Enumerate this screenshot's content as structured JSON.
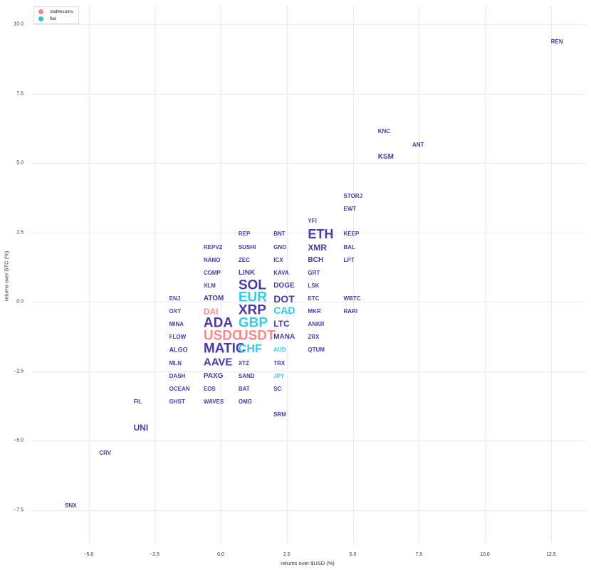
{
  "chart_data": {
    "type": "scatter",
    "title": "",
    "xlabel": "returns over $USD (%)",
    "ylabel": "returns over BTC (%)",
    "xlim": [
      -7.2,
      13.8
    ],
    "ylim": [
      -8.8,
      10.2
    ],
    "grid": true,
    "legend_position": "upper left",
    "x_ticks": [
      "−5.0",
      "−2.5",
      "0.0",
      "2.5",
      "5.0",
      "7.5",
      "10.0",
      "12.5"
    ],
    "y_ticks": [
      "10.0",
      "7.5",
      "5.0",
      "2.5",
      "0.0",
      "−2.5",
      "−5.0",
      "−7.5"
    ],
    "legend": [
      {
        "label": "stablecoins",
        "color": "#f7878a"
      },
      {
        "label": "fiat",
        "color": "#1ec8ee"
      }
    ],
    "colors": {
      "crypto": "#4a3aa7",
      "stablecoins": "#f7878a",
      "fiat": "#2ecbea"
    },
    "points": [
      {
        "label": "REN",
        "x": 12.5,
        "y": 9.35,
        "group": "crypto",
        "size": 8
      },
      {
        "label": "KNC",
        "x": 5.95,
        "y": 6.13,
        "group": "crypto",
        "size": 8
      },
      {
        "label": "ANT",
        "x": 7.25,
        "y": 5.64,
        "group": "crypto",
        "size": 8
      },
      {
        "label": "KSM",
        "x": 5.95,
        "y": 5.2,
        "group": "crypto",
        "size": 10
      },
      {
        "label": "STORJ",
        "x": 4.65,
        "y": 3.8,
        "group": "crypto",
        "size": 8
      },
      {
        "label": "EWT",
        "x": 4.65,
        "y": 3.33,
        "group": "crypto",
        "size": 8
      },
      {
        "label": "YFI",
        "x": 3.3,
        "y": 2.9,
        "group": "crypto",
        "size": 8
      },
      {
        "label": "ETH",
        "x": 3.3,
        "y": 2.44,
        "group": "crypto",
        "size": 18
      },
      {
        "label": "KEEP",
        "x": 4.65,
        "y": 2.44,
        "group": "crypto",
        "size": 8
      },
      {
        "label": "REP",
        "x": 0.67,
        "y": 2.44,
        "group": "crypto",
        "size": 8
      },
      {
        "label": "BNT",
        "x": 2.0,
        "y": 2.44,
        "group": "crypto",
        "size": 8
      },
      {
        "label": "REPV2",
        "x": -0.65,
        "y": 1.95,
        "group": "crypto",
        "size": 8
      },
      {
        "label": "SUSHI",
        "x": 0.67,
        "y": 1.95,
        "group": "crypto",
        "size": 8
      },
      {
        "label": "GNO",
        "x": 2.0,
        "y": 1.95,
        "group": "crypto",
        "size": 8
      },
      {
        "label": "XMR",
        "x": 3.3,
        "y": 1.95,
        "group": "crypto",
        "size": 12
      },
      {
        "label": "BAL",
        "x": 4.65,
        "y": 1.95,
        "group": "crypto",
        "size": 8
      },
      {
        "label": "NANO",
        "x": -0.65,
        "y": 1.49,
        "group": "crypto",
        "size": 8
      },
      {
        "label": "ZEC",
        "x": 0.67,
        "y": 1.49,
        "group": "crypto",
        "size": 8
      },
      {
        "label": "ICX",
        "x": 2.0,
        "y": 1.49,
        "group": "crypto",
        "size": 8
      },
      {
        "label": "BCH",
        "x": 3.3,
        "y": 1.49,
        "group": "crypto",
        "size": 10
      },
      {
        "label": "LPT",
        "x": 4.65,
        "y": 1.49,
        "group": "crypto",
        "size": 8
      },
      {
        "label": "COMP",
        "x": -0.65,
        "y": 1.03,
        "group": "crypto",
        "size": 8
      },
      {
        "label": "LINK",
        "x": 0.67,
        "y": 1.03,
        "group": "crypto",
        "size": 10
      },
      {
        "label": "KAVA",
        "x": 2.0,
        "y": 1.03,
        "group": "crypto",
        "size": 8
      },
      {
        "label": "GRT",
        "x": 3.3,
        "y": 1.03,
        "group": "crypto",
        "size": 8
      },
      {
        "label": "XLM",
        "x": -0.65,
        "y": 0.56,
        "group": "crypto",
        "size": 8
      },
      {
        "label": "SOL",
        "x": 0.67,
        "y": 0.6,
        "group": "crypto",
        "size": 19
      },
      {
        "label": "DOGE",
        "x": 2.0,
        "y": 0.56,
        "group": "crypto",
        "size": 10
      },
      {
        "label": "LSK",
        "x": 3.3,
        "y": 0.56,
        "group": "crypto",
        "size": 8
      },
      {
        "label": "ENJ",
        "x": -1.95,
        "y": 0.1,
        "group": "crypto",
        "size": 8
      },
      {
        "label": "ATOM",
        "x": -0.65,
        "y": 0.1,
        "group": "crypto",
        "size": 10
      },
      {
        "label": "EUR",
        "x": 0.67,
        "y": 0.15,
        "group": "fiat",
        "size": 19
      },
      {
        "label": "DOT",
        "x": 2.0,
        "y": 0.1,
        "group": "crypto",
        "size": 14
      },
      {
        "label": "ETC",
        "x": 3.3,
        "y": 0.1,
        "group": "crypto",
        "size": 8
      },
      {
        "label": "WBTC",
        "x": 4.65,
        "y": 0.1,
        "group": "crypto",
        "size": 8
      },
      {
        "label": "OXT",
        "x": -1.95,
        "y": -0.36,
        "group": "crypto",
        "size": 8
      },
      {
        "label": "DAI",
        "x": -0.65,
        "y": -0.36,
        "group": "stablecoins",
        "size": 12
      },
      {
        "label": "XRP",
        "x": 0.67,
        "y": -0.3,
        "group": "crypto",
        "size": 19
      },
      {
        "label": "CAD",
        "x": 2.0,
        "y": -0.32,
        "group": "fiat",
        "size": 14
      },
      {
        "label": "MKR",
        "x": 3.3,
        "y": -0.36,
        "group": "crypto",
        "size": 8
      },
      {
        "label": "RARI",
        "x": 4.65,
        "y": -0.36,
        "group": "crypto",
        "size": 8
      },
      {
        "label": "MINA",
        "x": -1.95,
        "y": -0.82,
        "group": "crypto",
        "size": 8
      },
      {
        "label": "ADA",
        "x": -0.65,
        "y": -0.76,
        "group": "crypto",
        "size": 19
      },
      {
        "label": "GBP",
        "x": 0.67,
        "y": -0.76,
        "group": "fiat",
        "size": 19
      },
      {
        "label": "LTC",
        "x": 2.0,
        "y": -0.8,
        "group": "crypto",
        "size": 12
      },
      {
        "label": "ANKR",
        "x": 3.3,
        "y": -0.82,
        "group": "crypto",
        "size": 8
      },
      {
        "label": "FLOW",
        "x": -1.95,
        "y": -1.28,
        "group": "crypto",
        "size": 8
      },
      {
        "label": "USDC",
        "x": -0.65,
        "y": -1.22,
        "group": "stablecoins",
        "size": 19
      },
      {
        "label": "USDT",
        "x": 0.67,
        "y": -1.22,
        "group": "stablecoins",
        "size": 19
      },
      {
        "label": "MANA",
        "x": 2.0,
        "y": -1.28,
        "group": "crypto",
        "size": 10
      },
      {
        "label": "ZRX",
        "x": 3.3,
        "y": -1.28,
        "group": "crypto",
        "size": 8
      },
      {
        "label": "ALGO",
        "x": -1.95,
        "y": -1.74,
        "group": "crypto",
        "size": 9
      },
      {
        "label": "MATIC",
        "x": -0.65,
        "y": -1.68,
        "group": "crypto",
        "size": 19
      },
      {
        "label": "CHF",
        "x": 0.67,
        "y": -1.72,
        "group": "fiat",
        "size": 16
      },
      {
        "label": "AUD",
        "x": 2.0,
        "y": -1.74,
        "group": "fiat",
        "size": 8
      },
      {
        "label": "QTUM",
        "x": 3.3,
        "y": -1.74,
        "group": "crypto",
        "size": 8
      },
      {
        "label": "MLN",
        "x": -1.95,
        "y": -2.23,
        "group": "crypto",
        "size": 8
      },
      {
        "label": "AAVE",
        "x": -0.65,
        "y": -2.19,
        "group": "crypto",
        "size": 15
      },
      {
        "label": "XTZ",
        "x": 0.67,
        "y": -2.23,
        "group": "crypto",
        "size": 8
      },
      {
        "label": "TRX",
        "x": 2.0,
        "y": -2.23,
        "group": "crypto",
        "size": 8
      },
      {
        "label": "DASH",
        "x": -1.95,
        "y": -2.69,
        "group": "crypto",
        "size": 8
      },
      {
        "label": "PAXG",
        "x": -0.65,
        "y": -2.69,
        "group": "crypto",
        "size": 10
      },
      {
        "label": "SAND",
        "x": 0.67,
        "y": -2.69,
        "group": "crypto",
        "size": 8
      },
      {
        "label": "JPY",
        "x": 2.0,
        "y": -2.69,
        "group": "fiat",
        "size": 8
      },
      {
        "label": "OCEAN",
        "x": -1.95,
        "y": -3.15,
        "group": "crypto",
        "size": 8
      },
      {
        "label": "EOS",
        "x": -0.65,
        "y": -3.15,
        "group": "crypto",
        "size": 8
      },
      {
        "label": "BAT",
        "x": 0.67,
        "y": -3.15,
        "group": "crypto",
        "size": 8
      },
      {
        "label": "SC",
        "x": 2.0,
        "y": -3.15,
        "group": "crypto",
        "size": 8
      },
      {
        "label": "FIL",
        "x": -3.3,
        "y": -3.62,
        "group": "crypto",
        "size": 8
      },
      {
        "label": "GHST",
        "x": -1.95,
        "y": -3.62,
        "group": "crypto",
        "size": 8
      },
      {
        "label": "WAVES",
        "x": -0.65,
        "y": -3.62,
        "group": "crypto",
        "size": 8
      },
      {
        "label": "OMG",
        "x": 0.67,
        "y": -3.62,
        "group": "crypto",
        "size": 8
      },
      {
        "label": "SRM",
        "x": 2.0,
        "y": -4.08,
        "group": "crypto",
        "size": 8
      },
      {
        "label": "UNI",
        "x": -3.3,
        "y": -4.54,
        "group": "crypto",
        "size": 12
      },
      {
        "label": "CRV",
        "x": -4.6,
        "y": -5.46,
        "group": "crypto",
        "size": 8
      },
      {
        "label": "SNX",
        "x": -5.9,
        "y": -7.36,
        "group": "crypto",
        "size": 8
      }
    ]
  }
}
